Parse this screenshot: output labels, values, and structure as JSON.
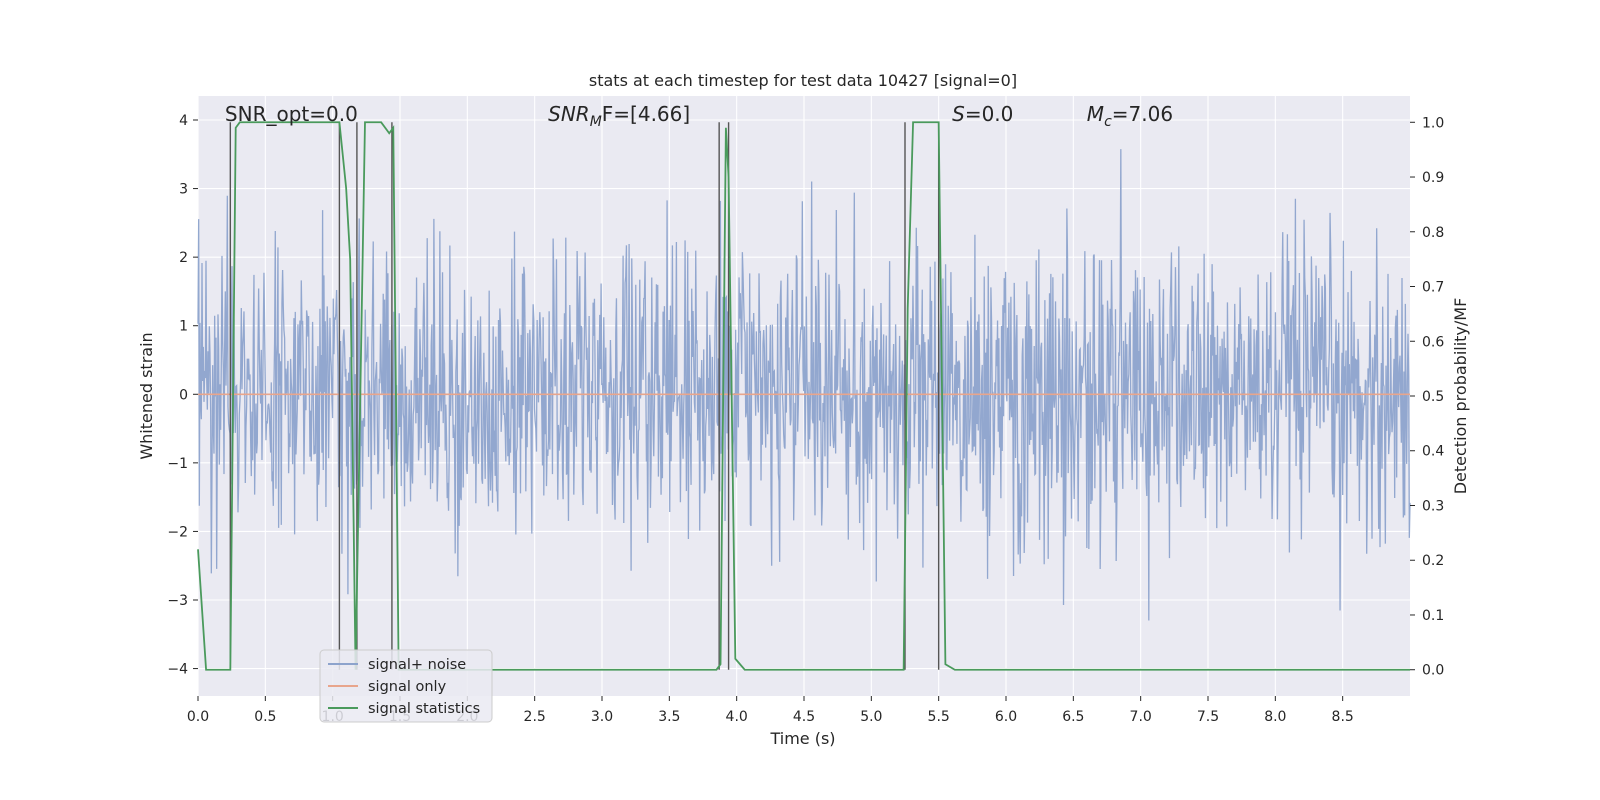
{
  "chart_data": {
    "type": "line",
    "title": "stats at each timestep for test data 10427 [signal=0]",
    "xlabel": "Time (s)",
    "ylabel": "Whitened strain",
    "y2label": "Detection probability/MF",
    "xlim": [
      0.0,
      9.0
    ],
    "ylim": [
      -4.4,
      4.35
    ],
    "y2lim": [
      -0.048,
      1.048
    ],
    "xticks": [
      0.0,
      0.5,
      1.0,
      1.5,
      2.0,
      2.5,
      3.0,
      3.5,
      4.0,
      4.5,
      5.0,
      5.5,
      6.0,
      6.5,
      7.0,
      7.5,
      8.0,
      8.5
    ],
    "xtick_labels": [
      "0.0",
      "0.5",
      "1.0",
      "1.5",
      "2.0",
      "2.5",
      "3.0",
      "3.5",
      "4.0",
      "4.5",
      "5.0",
      "5.5",
      "6.0",
      "6.5",
      "7.0",
      "7.5",
      "8.0",
      "8.5"
    ],
    "yticks": [
      -4,
      -3,
      -2,
      -1,
      0,
      1,
      2,
      3,
      4
    ],
    "ytick_labels": [
      "−4",
      "−3",
      "−2",
      "−1",
      "0",
      "1",
      "2",
      "3",
      "4"
    ],
    "y2ticks": [
      0.0,
      0.1,
      0.2,
      0.3,
      0.4,
      0.5,
      0.6,
      0.7,
      0.8,
      0.9,
      1.0
    ],
    "y2tick_labels": [
      "0.0",
      "0.1",
      "0.2",
      "0.3",
      "0.4",
      "0.5",
      "0.6",
      "0.7",
      "0.8",
      "0.9",
      "1.0"
    ],
    "grid": true,
    "legend_position": "lower-left",
    "series": [
      {
        "name": "signal+ noise",
        "color": "#8da3cc",
        "kind": "dense noise, amplitude about ±1.5 typical, peaks to about ±4",
        "amplitude_bounds": [
          -3.9,
          4.0
        ]
      },
      {
        "name": "signal only",
        "color": "#e8a58c",
        "x": [
          0.0,
          9.0
        ],
        "y": [
          0.0,
          0.0
        ]
      },
      {
        "name": "signal statistics",
        "color": "#4a9a5c",
        "axis": "right",
        "x": [
          0.0,
          0.06,
          0.24,
          0.28,
          0.31,
          1.05,
          1.1,
          1.13,
          1.17,
          1.24,
          1.36,
          1.42,
          1.45,
          1.49,
          1.53,
          3.85,
          3.88,
          3.92,
          3.94,
          3.99,
          4.06,
          4.8,
          5.24,
          5.27,
          5.31,
          5.5,
          5.55,
          5.62,
          9.0
        ],
        "y": [
          0.22,
          0.0,
          0.0,
          0.99,
          1.0,
          1.0,
          0.88,
          0.75,
          0.0,
          1.0,
          1.0,
          0.98,
          0.99,
          0.0,
          0.0,
          0.0,
          0.01,
          0.99,
          0.9,
          0.02,
          0.0,
          0.0,
          0.0,
          0.66,
          1.0,
          1.0,
          0.01,
          0.0,
          0.0
        ]
      }
    ],
    "vertical_markers": [
      0.24,
      1.05,
      1.18,
      1.44,
      3.87,
      3.94,
      5.25,
      5.5
    ],
    "marker_color": "#555555",
    "annotations": [
      {
        "text": "SNR_opt=0.0",
        "x": 0.2
      },
      {
        "text": "SNR",
        "sub": "M",
        "rest": "F=[4.66]",
        "italic": true,
        "x": 2.6
      },
      {
        "text": "S",
        "rest": "=0.0",
        "italic": true,
        "x": 5.6
      },
      {
        "text": "M",
        "sub": "c",
        "rest": "=7.06",
        "italic": true,
        "x": 6.6
      }
    ],
    "legend": [
      {
        "label": "signal+ noise",
        "color": "#8da3cc"
      },
      {
        "label": "signal only",
        "color": "#e8a58c"
      },
      {
        "label": "signal statistics",
        "color": "#4a9a5c"
      }
    ],
    "colors": {
      "background": "#eaeaf2",
      "grid": "#ffffff",
      "text": "#262626"
    }
  }
}
